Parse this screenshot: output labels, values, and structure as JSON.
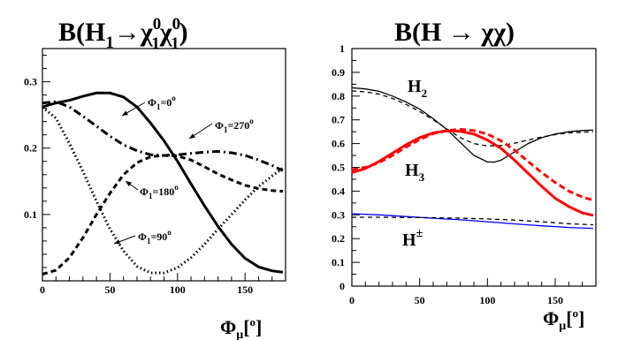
{
  "chart_data": [
    {
      "type": "line",
      "title": "B(H1→χ10χ10)",
      "title_parts": {
        "main": "B(H",
        "sub1": "1",
        "arrow": "→",
        "chi": "χ",
        "sup1": "0",
        "sub2": "1",
        "sup2": "0",
        "sub3": "1",
        "close": ")"
      },
      "xlabel": "Φμ[o]",
      "xlabel_parts": {
        "main": "Φ",
        "sub": "μ",
        "bracket_open": "[",
        "sup": "o",
        "bracket_close": "]"
      },
      "ylabel": "",
      "xlim": [
        0,
        180
      ],
      "ylim": [
        0,
        0.35
      ],
      "xticks": [
        0,
        50,
        100,
        150
      ],
      "yticks": [
        0.1,
        0.2,
        0.3
      ],
      "grid": false,
      "series": [
        {
          "name": "Φ1=0o",
          "style": "solid",
          "x": [
            0,
            10,
            20,
            30,
            40,
            50,
            60,
            70,
            80,
            90,
            100,
            110,
            120,
            130,
            140,
            150,
            160,
            170,
            178
          ],
          "values": [
            0.262,
            0.268,
            0.272,
            0.278,
            0.283,
            0.283,
            0.277,
            0.262,
            0.238,
            0.211,
            0.18,
            0.146,
            0.113,
            0.082,
            0.055,
            0.034,
            0.021,
            0.015,
            0.013
          ]
        },
        {
          "name": "Φ1=270o",
          "style": "dashdot",
          "x": [
            0,
            10,
            20,
            30,
            40,
            50,
            60,
            70,
            80,
            90,
            100,
            110,
            120,
            130,
            140,
            150,
            160,
            170,
            178
          ],
          "values": [
            0.268,
            0.27,
            0.262,
            0.248,
            0.233,
            0.218,
            0.205,
            0.196,
            0.19,
            0.189,
            0.19,
            0.192,
            0.194,
            0.195,
            0.193,
            0.189,
            0.182,
            0.174,
            0.166
          ]
        },
        {
          "name": "Φ1=180o",
          "style": "dashed",
          "x": [
            0,
            10,
            20,
            30,
            40,
            50,
            60,
            70,
            80,
            90,
            100,
            110,
            120,
            130,
            140,
            150,
            160,
            170,
            178
          ],
          "values": [
            0.01,
            0.016,
            0.035,
            0.065,
            0.1,
            0.132,
            0.16,
            0.178,
            0.187,
            0.189,
            0.188,
            0.182,
            0.172,
            0.161,
            0.152,
            0.144,
            0.139,
            0.136,
            0.135
          ]
        },
        {
          "name": "Φ1=90o",
          "style": "dotted",
          "x": [
            0,
            10,
            20,
            30,
            40,
            50,
            60,
            70,
            80,
            90,
            100,
            110,
            120,
            130,
            140,
            150,
            160,
            170,
            178
          ],
          "values": [
            0.262,
            0.245,
            0.207,
            0.165,
            0.12,
            0.078,
            0.045,
            0.022,
            0.012,
            0.012,
            0.02,
            0.035,
            0.055,
            0.078,
            0.1,
            0.122,
            0.142,
            0.158,
            0.17
          ]
        }
      ],
      "annotations": [
        {
          "series": "Φ1=0o",
          "text_main": "Φ",
          "text_sub": "1",
          "text_eq": "=0",
          "text_sup": "o"
        },
        {
          "series": "Φ1=270o",
          "text_main": "Φ",
          "text_sub": "1",
          "text_eq": "=270",
          "text_sup": "o"
        },
        {
          "series": "Φ1=180o",
          "text_main": "Φ",
          "text_sub": "1",
          "text_eq": "=180",
          "text_sup": "o"
        },
        {
          "series": "Φ1=90o",
          "text_main": "Φ",
          "text_sub": "1",
          "text_eq": "=90",
          "text_sup": "o"
        }
      ]
    },
    {
      "type": "line",
      "title": "B(H → χχ)",
      "xlabel": "Φμ[o]",
      "xlabel_parts": {
        "main": "Φ",
        "sub": "μ",
        "bracket_open": "[",
        "sup": "o",
        "bracket_close": "]"
      },
      "ylabel": "",
      "xlim": [
        0,
        180
      ],
      "ylim": [
        0,
        1
      ],
      "xticks": [
        0,
        50,
        100,
        150
      ],
      "yticks": [
        0,
        0.1,
        0.2,
        0.3,
        0.4,
        0.5,
        0.6,
        0.7,
        0.8,
        0.9,
        1
      ],
      "ytick_labels": [
        "0",
        "0.1",
        "0.2",
        "0.3",
        "0.4",
        "0.5",
        "0.6",
        "0.7",
        "0.8",
        "0.9",
        "1"
      ],
      "grid": false,
      "series": [
        {
          "name": "H2",
          "style": "solid",
          "color": "#000000",
          "x": [
            0,
            10,
            20,
            30,
            40,
            50,
            60,
            70,
            80,
            90,
            100,
            105,
            110,
            120,
            130,
            140,
            150,
            160,
            170,
            178
          ],
          "values": [
            0.835,
            0.83,
            0.82,
            0.8,
            0.775,
            0.745,
            0.705,
            0.66,
            0.605,
            0.55,
            0.523,
            0.522,
            0.53,
            0.565,
            0.6,
            0.625,
            0.64,
            0.65,
            0.655,
            0.657
          ]
        },
        {
          "name": "H2",
          "style": "dashed",
          "color": "#000000",
          "x": [
            0,
            10,
            20,
            30,
            40,
            50,
            60,
            70,
            80,
            90,
            100,
            110,
            120,
            130,
            140,
            150,
            160,
            170,
            178
          ],
          "values": [
            0.822,
            0.818,
            0.808,
            0.79,
            0.765,
            0.735,
            0.7,
            0.662,
            0.625,
            0.6,
            0.59,
            0.592,
            0.602,
            0.615,
            0.628,
            0.638,
            0.645,
            0.648,
            0.65
          ]
        },
        {
          "name": "H3",
          "style": "solid",
          "color": "#ff0000",
          "width": 3,
          "x": [
            0,
            10,
            20,
            30,
            40,
            50,
            60,
            70,
            80,
            90,
            100,
            110,
            120,
            130,
            140,
            150,
            160,
            170,
            178
          ],
          "values": [
            0.478,
            0.495,
            0.525,
            0.56,
            0.595,
            0.625,
            0.645,
            0.653,
            0.652,
            0.64,
            0.615,
            0.58,
            0.53,
            0.475,
            0.42,
            0.37,
            0.335,
            0.308,
            0.298
          ]
        },
        {
          "name": "H3",
          "style": "dashed",
          "color": "#ff0000",
          "width": 3,
          "x": [
            0,
            10,
            20,
            30,
            40,
            50,
            60,
            70,
            80,
            90,
            100,
            110,
            120,
            130,
            140,
            150,
            160,
            170,
            178
          ],
          "values": [
            0.49,
            0.5,
            0.52,
            0.55,
            0.585,
            0.617,
            0.642,
            0.655,
            0.66,
            0.655,
            0.64,
            0.612,
            0.572,
            0.525,
            0.478,
            0.436,
            0.4,
            0.375,
            0.362
          ]
        },
        {
          "name": "H±",
          "style": "solid",
          "color": "#0000ff",
          "x": [
            0,
            20,
            40,
            60,
            80,
            100,
            120,
            140,
            160,
            178
          ],
          "values": [
            0.305,
            0.3,
            0.293,
            0.286,
            0.279,
            0.271,
            0.262,
            0.254,
            0.247,
            0.243
          ]
        },
        {
          "name": "H±",
          "style": "dashed",
          "color": "#000000",
          "x": [
            0,
            20,
            40,
            60,
            80,
            100,
            120,
            140,
            160,
            178
          ],
          "values": [
            0.29,
            0.29,
            0.289,
            0.288,
            0.286,
            0.283,
            0.278,
            0.271,
            0.263,
            0.258
          ]
        }
      ],
      "labels": [
        {
          "main": "H",
          "sub": "2",
          "sup": ""
        },
        {
          "main": "H",
          "sub": "3",
          "sup": ""
        },
        {
          "main": "H",
          "sub": "",
          "sup": "±"
        }
      ]
    }
  ]
}
